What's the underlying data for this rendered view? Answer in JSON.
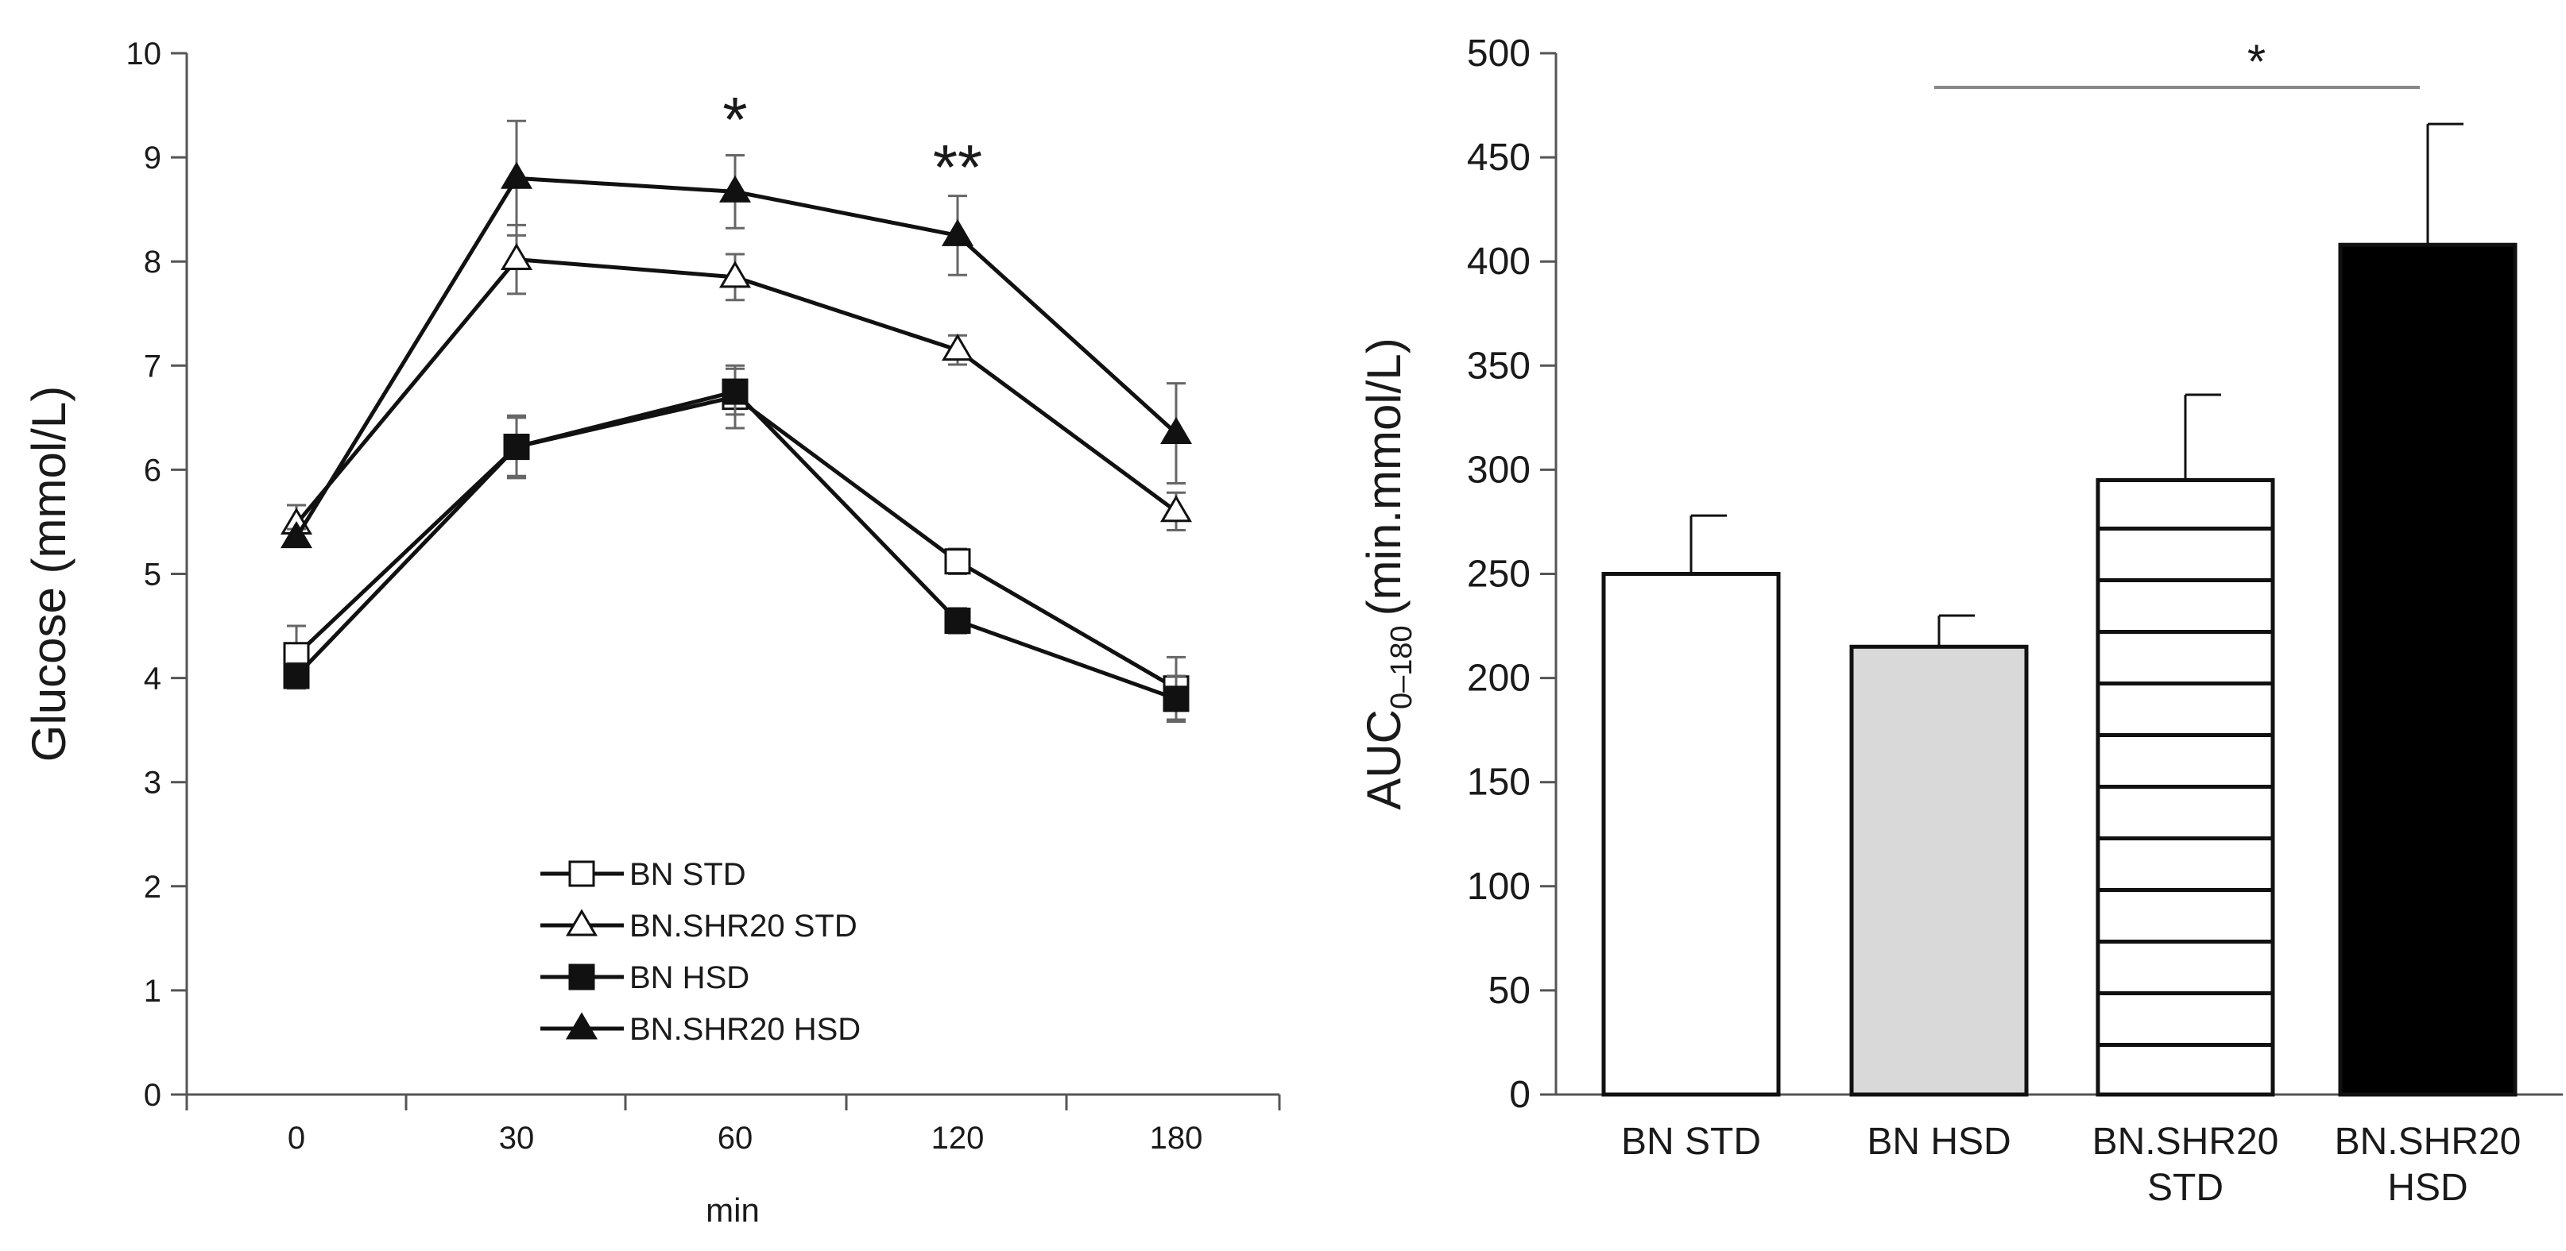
{
  "chart_data": [
    {
      "type": "line",
      "xlabel": "min",
      "ylabel": "Glucose (mmol/L)",
      "x": [
        "0",
        "30",
        "60",
        "120",
        "180"
      ],
      "ylim": [
        0,
        10
      ],
      "yticks": [
        "0",
        "1",
        "2",
        "3",
        "4",
        "5",
        "6",
        "7",
        "8",
        "9",
        "10"
      ],
      "grid": false,
      "legend_placement": "bottom-center",
      "series": [
        {
          "name": "BN STD",
          "marker": "square-open",
          "values": [
            4.22,
            6.22,
            6.7,
            5.12,
            3.9
          ],
          "errors": [
            0.28,
            0.3,
            0.3,
            0.12,
            0.3
          ]
        },
        {
          "name": "BN.SHR20 STD",
          "marker": "triangle-open",
          "values": [
            5.48,
            8.02,
            7.85,
            7.15,
            5.6
          ],
          "errors": [
            0.18,
            0.33,
            0.22,
            0.14,
            0.18
          ]
        },
        {
          "name": "BN HSD",
          "marker": "square-filled",
          "values": [
            4.02,
            6.22,
            6.75,
            4.55,
            3.8
          ],
          "errors": [
            0.12,
            0.28,
            0.22,
            0.12,
            0.22
          ]
        },
        {
          "name": "BN.SHR20 HSD",
          "marker": "triangle-filled",
          "values": [
            5.35,
            8.8,
            8.67,
            8.25,
            6.35
          ],
          "errors": [
            0.08,
            0.55,
            0.35,
            0.38,
            0.48
          ]
        }
      ],
      "annotations": [
        {
          "text": "*",
          "x": "60"
        },
        {
          "text": "**",
          "x": "120"
        }
      ]
    },
    {
      "type": "bar",
      "ylabel": "AUC",
      "ylabel_sub": "0–180",
      "ylabel_unit": "(min.mmol/L)",
      "categories": [
        "BN STD",
        "BN HSD",
        "BN.SHR20 STD",
        "BN.SHR20 HSD"
      ],
      "category_lines": [
        [
          "BN STD"
        ],
        [
          "BN HSD"
        ],
        [
          "BN.SHR20",
          "STD"
        ],
        [
          "BN.SHR20",
          "HSD"
        ]
      ],
      "values": [
        250,
        215,
        295,
        408
      ],
      "errors": [
        28,
        15,
        41,
        58
      ],
      "fills": [
        "#ffffff",
        "#d9d9d9",
        "stripes",
        "#000000"
      ],
      "ylim": [
        0,
        500
      ],
      "yticks": [
        "0",
        "50",
        "100",
        "150",
        "200",
        "250",
        "300",
        "350",
        "400",
        "450",
        "500"
      ],
      "grid": false,
      "annotations": [
        {
          "text": "*",
          "from": "BN HSD",
          "to": "BN.SHR20 HSD"
        }
      ]
    }
  ]
}
